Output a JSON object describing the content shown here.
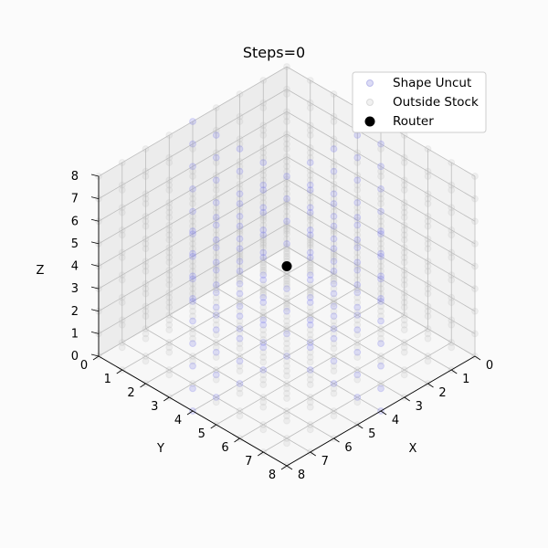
{
  "chart_data": {
    "type": "scatter",
    "title": "Steps=0",
    "xlabel": "X",
    "ylabel": "Y",
    "zlabel": "Z",
    "xlim": [
      0,
      8
    ],
    "ylim": [
      0,
      8
    ],
    "zlim": [
      0,
      8
    ],
    "xticks": [
      "0",
      "1",
      "2",
      "3",
      "4",
      "5",
      "6",
      "7",
      "8"
    ],
    "yticks": [
      "0",
      "1",
      "2",
      "3",
      "4",
      "5",
      "6",
      "7",
      "8"
    ],
    "zticks": [
      "0",
      "1",
      "2",
      "3",
      "4",
      "5",
      "6",
      "7",
      "8"
    ],
    "grid": true,
    "legend_position": "top-right",
    "grid_spacing": 1,
    "series": [
      {
        "name": "Shape Uncut",
        "color": "#7b7bea",
        "description_region": "points at x=4 or y=4 with z in [0,8], plus scattered interior points",
        "points_rule": "x=4 or y=4"
      },
      {
        "name": "Outside Stock",
        "color": "#bdbdbd",
        "points_rule": "all remaining integer lattice points in [0,8]^3"
      },
      {
        "name": "Router",
        "color": "#000000",
        "point": [
          4,
          4,
          4
        ]
      }
    ]
  }
}
